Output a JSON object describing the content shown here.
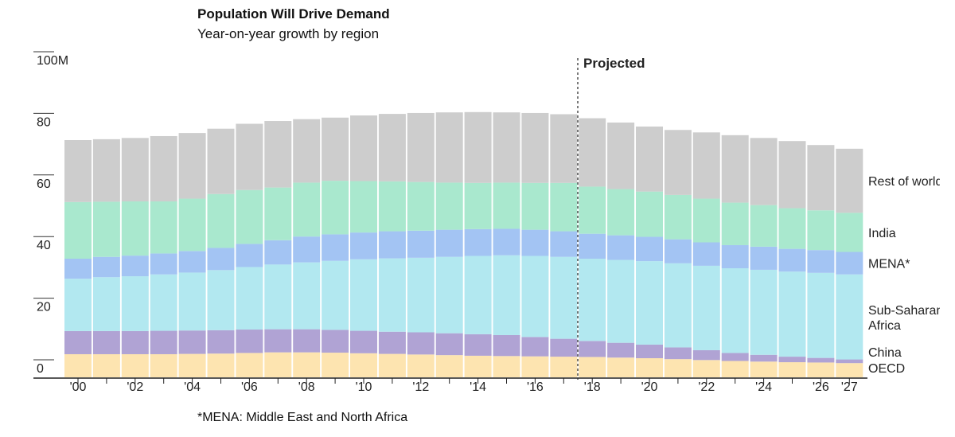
{
  "title": "Population Will Drive Demand",
  "subtitle": "Year-on-year growth by region",
  "footnote": "*MENA: Middle East and North Africa",
  "chart_data": {
    "type": "bar",
    "stacked": true,
    "y_unit": "M",
    "ylim": [
      0,
      100
    ],
    "y_ticks": [
      0,
      20,
      40,
      60,
      80,
      100
    ],
    "y_tick_labels": [
      "0",
      "20",
      "40",
      "60",
      "80",
      "100"
    ],
    "grid": false,
    "projected_label": "Projected",
    "projected_after": "2017",
    "categories": [
      "2000",
      "2001",
      "2002",
      "2003",
      "2004",
      "2005",
      "2006",
      "2007",
      "2008",
      "2009",
      "2010",
      "2011",
      "2012",
      "2013",
      "2014",
      "2015",
      "2016",
      "2017",
      "2018",
      "2019",
      "2020",
      "2021",
      "2022",
      "2023",
      "2024",
      "2025",
      "2026",
      "2027"
    ],
    "x_tick_labels": [
      "'00",
      "",
      "'02",
      "",
      "'04",
      "",
      "'06",
      "",
      "'08",
      "",
      "'10",
      "",
      "'12",
      "",
      "'14",
      "",
      "'16",
      "",
      "'18",
      "",
      "'20",
      "",
      "'22",
      "",
      "'24",
      "",
      "'26",
      "'27"
    ],
    "series": [
      {
        "name": "OECD",
        "color": "#fde4b0",
        "values": [
          7.5,
          7.5,
          7.5,
          7.5,
          7.6,
          7.7,
          7.9,
          8.1,
          8.1,
          8.0,
          7.8,
          7.6,
          7.4,
          7.2,
          7.0,
          6.9,
          6.8,
          6.7,
          6.6,
          6.4,
          6.2,
          5.9,
          5.6,
          5.3,
          5.1,
          4.9,
          4.8,
          4.6
        ]
      },
      {
        "name": "China",
        "color": "#b0a3d4",
        "values": [
          7.5,
          7.5,
          7.5,
          7.6,
          7.6,
          7.6,
          7.6,
          7.5,
          7.5,
          7.4,
          7.3,
          7.2,
          7.2,
          7.1,
          7.0,
          6.8,
          6.3,
          5.8,
          5.2,
          4.8,
          4.4,
          3.8,
          3.2,
          2.6,
          2.2,
          1.8,
          1.5,
          1.2
        ]
      },
      {
        "name": "Sub-Saharan Africa",
        "color": "#b2e8f0",
        "values": [
          17.0,
          17.5,
          17.8,
          18.3,
          18.8,
          19.5,
          20.3,
          21.0,
          21.7,
          22.4,
          23.2,
          23.8,
          24.2,
          24.8,
          25.4,
          25.9,
          26.3,
          26.6,
          26.7,
          26.9,
          27.1,
          27.3,
          27.4,
          27.5,
          27.6,
          27.6,
          27.6,
          27.6
        ]
      },
      {
        "name": "MENA*",
        "color": "#a3c4f3",
        "values": [
          6.5,
          6.6,
          6.7,
          6.8,
          7.0,
          7.2,
          7.5,
          7.9,
          8.4,
          8.6,
          8.7,
          8.8,
          8.8,
          8.8,
          8.7,
          8.6,
          8.5,
          8.3,
          8.1,
          8.0,
          7.9,
          7.8,
          7.6,
          7.5,
          7.5,
          7.4,
          7.4,
          7.3
        ]
      },
      {
        "name": "India",
        "color": "#a9e8ce",
        "values": [
          18.4,
          17.9,
          17.6,
          16.9,
          17.0,
          17.5,
          17.5,
          17.1,
          17.5,
          17.4,
          16.7,
          16.2,
          15.8,
          15.3,
          15.0,
          15.0,
          15.2,
          15.7,
          15.3,
          15.0,
          14.7,
          14.4,
          14.2,
          13.8,
          13.5,
          13.2,
          12.9,
          12.7
        ]
      },
      {
        "name": "Rest of world",
        "color": "#cdcdcd",
        "values": [
          20.1,
          20.3,
          20.6,
          21.2,
          21.3,
          21.2,
          21.5,
          21.6,
          20.6,
          20.5,
          21.3,
          21.9,
          22.4,
          22.8,
          23.0,
          22.8,
          22.7,
          22.3,
          22.2,
          21.6,
          21.1,
          21.1,
          21.5,
          21.9,
          21.8,
          21.8,
          21.2,
          20.8
        ]
      }
    ],
    "legend_placement": "right (labels next to the last bar)",
    "legend_labels": [
      "OECD",
      "China",
      "Sub-Saharan\nAfrica",
      "MENA*",
      "India",
      "Rest of world"
    ]
  }
}
